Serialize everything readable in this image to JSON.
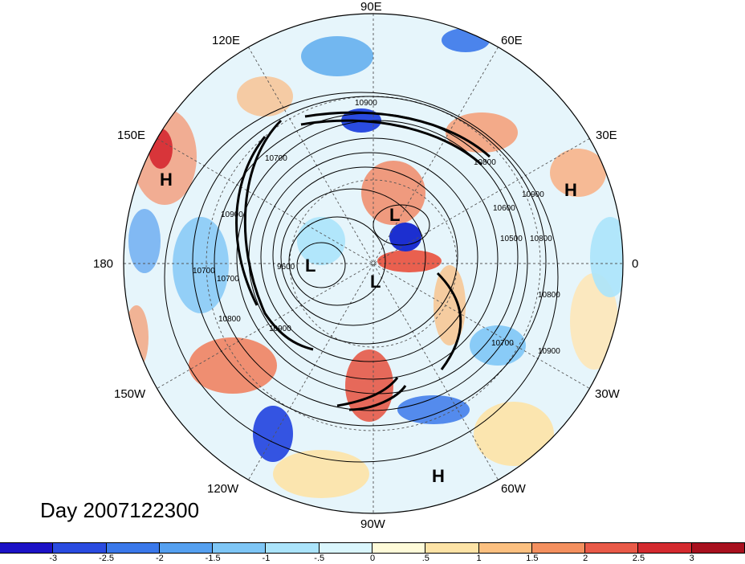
{
  "title": "Day 2007122300",
  "longitude_labels": {
    "e90": "90E",
    "e60": "60E",
    "e30": "30E",
    "zero": "0",
    "w30": "30W",
    "w60": "60W",
    "w90": "90W",
    "w120": "120W",
    "w150": "150W",
    "d180": "180",
    "e150": "150E",
    "e120": "120E"
  },
  "pressure_centers": [
    "H",
    "H",
    "L",
    "L",
    "L",
    "H"
  ],
  "contour_labels": [
    "10900",
    "10700",
    "10800",
    "10500",
    "10600",
    "10900",
    "10800",
    "10700",
    "9600",
    "10700",
    "10800",
    "10900",
    "10900",
    "10800",
    "10700",
    "10900"
  ],
  "colorbar": {
    "ticks": [
      "-3",
      "-2.5",
      "-2",
      "-1.5",
      "-1",
      "-.5",
      "0",
      ".5",
      "1",
      "1.5",
      "2",
      "2.5",
      "3"
    ],
    "colors": [
      "#1c12c6",
      "#2a4be0",
      "#3a78ea",
      "#55a0f0",
      "#7ec6f6",
      "#abe4fb",
      "#daf6fd",
      "#fffbd9",
      "#fde3a6",
      "#fcc080",
      "#f4905f",
      "#e95a48",
      "#d42a2f",
      "#a8101e"
    ]
  }
}
